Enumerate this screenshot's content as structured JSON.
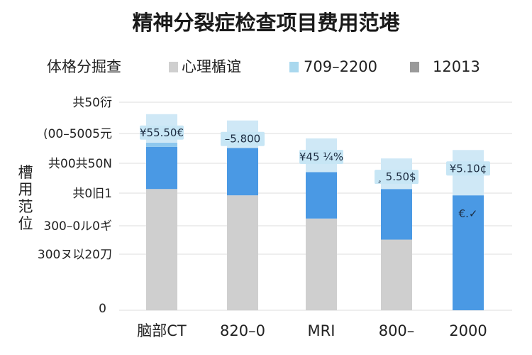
{
  "chart_data": {
    "type": "bar",
    "stacked": true,
    "title": "精神分裂症检查项目费用范塂",
    "ylabel": "槽用范位",
    "xlabel": "",
    "categories": [
      "脑部CT",
      "820–0",
      "MRI",
      "800–",
      "2000"
    ],
    "y_ticks": [
      "共50衍",
      "(00–5005元",
      "共00共50N",
      "共0旧1",
      "300–0ル0ギ",
      "300ヌ以20刀",
      "0"
    ],
    "legend": [
      {
        "name": "体格分掘查",
        "color": "#ffffff"
      },
      {
        "name": "心理楯谊",
        "color": "#cfcfcf"
      },
      {
        "name": "709–2200",
        "color": "#a9d8ee"
      },
      {
        "name": "12013",
        "color": "#9a9a9a"
      }
    ],
    "ylim": [
      0,
      1000
    ],
    "series": [
      {
        "name": "心理楯谊",
        "color": "#cfcfcf",
        "values": [
          575,
          545,
          435,
          335,
          0
        ]
      },
      {
        "name": "",
        "color": "#4a99e4",
        "values": [
          200,
          225,
          220,
          240,
          545
        ]
      },
      {
        "name": "",
        "color": "#8ec8ee",
        "values": [
          20,
          0,
          0,
          0,
          0
        ]
      },
      {
        "name": "709–2200",
        "color": "#cfe8f6",
        "values": [
          135,
          130,
          160,
          145,
          215
        ]
      }
    ],
    "data_labels": [
      "¥55.50€",
      "–5.800",
      "¥45 ¼%",
      "¸ 5.50$",
      "¥5.10¢"
    ],
    "inner_labels": [
      "",
      "",
      "",
      "",
      "€.✓"
    ]
  }
}
